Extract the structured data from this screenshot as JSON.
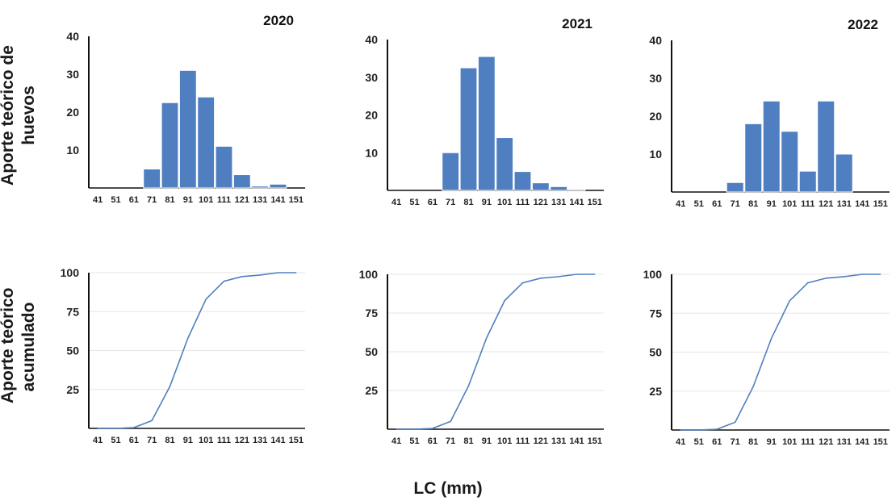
{
  "figure": {
    "ylabel_top_line1": "Aporte teórico de",
    "ylabel_top_line2": "huevos",
    "ylabel_bottom_line1": "Aporte teórico",
    "ylabel_bottom_line2": "acumulado",
    "xlabel": "LC (mm)"
  },
  "chart_data": [
    {
      "type": "bar",
      "title": "2020",
      "categories": [
        "41",
        "51",
        "61",
        "71",
        "81",
        "91",
        "101",
        "111",
        "121",
        "131",
        "141",
        "151"
      ],
      "values": [
        0,
        0,
        0,
        5,
        22.5,
        31,
        24,
        11,
        3.5,
        0.5,
        1,
        0
      ],
      "ylim": [
        0,
        40
      ],
      "yticks": [
        10,
        20,
        30,
        40
      ],
      "color": "#4f7fc0",
      "grid": false
    },
    {
      "type": "bar",
      "title": "2021",
      "categories": [
        "41",
        "51",
        "61",
        "71",
        "81",
        "91",
        "101",
        "111",
        "121",
        "131",
        "141",
        "151"
      ],
      "values": [
        0,
        0,
        0,
        10,
        32.5,
        35.5,
        14,
        5,
        2,
        1,
        0.3,
        0
      ],
      "ylim": [
        0,
        40
      ],
      "yticks": [
        10,
        20,
        30,
        40
      ],
      "color": "#4f7fc0",
      "grid": false
    },
    {
      "type": "bar",
      "title": "2022",
      "categories": [
        "41",
        "51",
        "61",
        "71",
        "81",
        "91",
        "101",
        "111",
        "121",
        "131",
        "141",
        "151"
      ],
      "values": [
        0,
        0,
        0,
        2.5,
        18,
        24,
        16,
        5.5,
        24,
        10,
        0,
        0
      ],
      "ylim": [
        0,
        40
      ],
      "yticks": [
        10,
        20,
        30,
        40
      ],
      "color": "#4f7fc0",
      "grid": false
    },
    {
      "type": "line",
      "x": [
        "41",
        "51",
        "61",
        "71",
        "81",
        "91",
        "101",
        "111",
        "121",
        "131",
        "141",
        "151"
      ],
      "values": [
        0,
        0,
        0.5,
        5,
        27,
        58,
        83,
        94.5,
        97.5,
        98.5,
        100,
        100
      ],
      "ylim": [
        0,
        100
      ],
      "yticks": [
        25,
        50,
        75,
        100
      ],
      "color": "#4f7fc0",
      "grid": true
    },
    {
      "type": "line",
      "x": [
        "41",
        "51",
        "61",
        "71",
        "81",
        "91",
        "101",
        "111",
        "121",
        "131",
        "141",
        "151"
      ],
      "values": [
        0,
        0,
        0.5,
        5,
        28,
        59,
        83,
        94.5,
        97.5,
        98.5,
        100,
        100
      ],
      "ylim": [
        0,
        100
      ],
      "yticks": [
        25,
        50,
        75,
        100
      ],
      "color": "#4f7fc0",
      "grid": true
    },
    {
      "type": "line",
      "x": [
        "41",
        "51",
        "61",
        "71",
        "81",
        "91",
        "101",
        "111",
        "121",
        "131",
        "141",
        "151"
      ],
      "values": [
        0,
        0,
        0.5,
        5,
        28,
        59,
        83,
        94.5,
        97.5,
        98.5,
        100,
        100
      ],
      "ylim": [
        0,
        100
      ],
      "yticks": [
        25,
        50,
        75,
        100
      ],
      "color": "#4f7fc0",
      "grid": true
    }
  ]
}
